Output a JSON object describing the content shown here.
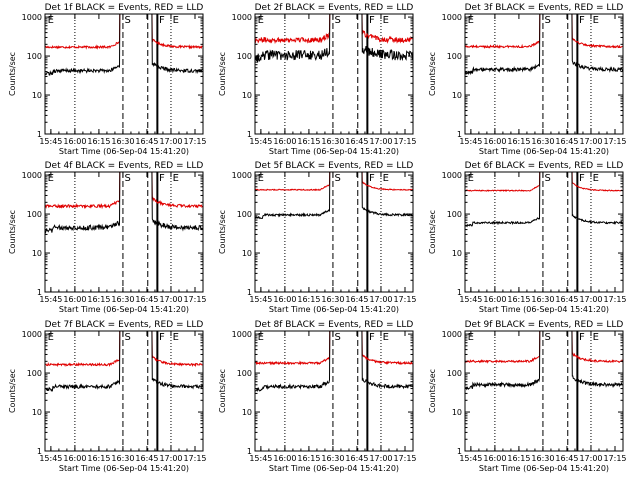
{
  "chart_data": [
    {
      "id": "det1",
      "type": "line",
      "title": "Det 1f BLACK = Events, RED = LLD",
      "xlabel": "Start Time (06-Sep-04 15:41:20)",
      "ylabel": "Counts/sec",
      "evt": 42,
      "lld": 170,
      "evt_noise": 0.1,
      "lld_noise": 0.06
    },
    {
      "id": "det2",
      "type": "line",
      "title": "Det 2f BLACK = Events, RED = LLD",
      "xlabel": "Start Time (06-Sep-04 15:41:20)",
      "ylabel": "Counts/sec",
      "evt": 105,
      "lld": 260,
      "evt_noise": 0.3,
      "lld_noise": 0.15
    },
    {
      "id": "det3",
      "type": "line",
      "title": "Det 3f BLACK = Events, RED = LLD",
      "xlabel": "Start Time (06-Sep-04 15:41:20)",
      "ylabel": "Counts/sec",
      "evt": 45,
      "lld": 175,
      "evt_noise": 0.1,
      "lld_noise": 0.06
    },
    {
      "id": "det4",
      "type": "line",
      "title": "Det 4f BLACK = Events, RED = LLD",
      "xlabel": "Start Time (06-Sep-04 15:41:20)",
      "ylabel": "Counts/sec",
      "evt": 45,
      "lld": 160,
      "evt_noise": 0.14,
      "lld_noise": 0.08
    },
    {
      "id": "det5",
      "type": "line",
      "title": "Det 5f BLACK = Events, RED = LLD",
      "xlabel": "Start Time (06-Sep-04 15:41:20)",
      "ylabel": "Counts/sec",
      "evt": 95,
      "lld": 420,
      "evt_noise": 0.06,
      "lld_noise": 0.03
    },
    {
      "id": "det6",
      "type": "line",
      "title": "Det 6f BLACK = Events, RED = LLD",
      "xlabel": "Start Time (06-Sep-04 15:41:20)",
      "ylabel": "Counts/sec",
      "evt": 60,
      "lld": 400,
      "evt_noise": 0.06,
      "lld_noise": 0.03
    },
    {
      "id": "det7",
      "type": "line",
      "title": "Det 7f BLACK = Events, RED = LLD",
      "xlabel": "Start Time (06-Sep-04 15:41:20)",
      "ylabel": "Counts/sec",
      "evt": 45,
      "lld": 165,
      "evt_noise": 0.1,
      "lld_noise": 0.06
    },
    {
      "id": "det8",
      "type": "line",
      "title": "Det 8f BLACK = Events, RED = LLD",
      "xlabel": "Start Time (06-Sep-04 15:41:20)",
      "ylabel": "Counts/sec",
      "evt": 45,
      "lld": 180,
      "evt_noise": 0.1,
      "lld_noise": 0.06
    },
    {
      "id": "det9",
      "type": "line",
      "title": "Det 9f BLACK = Events, RED = LLD",
      "xlabel": "Start Time (06-Sep-04 15:41:20)",
      "ylabel": "Counts/sec",
      "evt": 50,
      "lld": 200,
      "evt_noise": 0.1,
      "lld_noise": 0.06
    }
  ],
  "shared": {
    "x_ticks": [
      "15:45",
      "16:00",
      "16:15",
      "16:30",
      "16:45",
      "17:00",
      "17:15"
    ],
    "x_tick_minutes": [
      945,
      960,
      975,
      990,
      1005,
      1020,
      1035
    ],
    "xlim_minutes": [
      941.33,
      1040
    ],
    "y_ticks": [
      "1",
      "10",
      "100",
      "1000"
    ],
    "y_tick_values": [
      1,
      10,
      100,
      1000
    ],
    "ylim": [
      1,
      1200
    ],
    "y_scale": "log",
    "dotted_minutes": [
      960,
      1020
    ],
    "dashed_minutes": [
      990,
      1005.5
    ],
    "solid_minutes": [
      1011.5
    ],
    "markers": [
      {
        "minutes": 943,
        "text": "E"
      },
      {
        "minutes": 991,
        "text": "S"
      },
      {
        "minutes": 1012.5,
        "text": "F"
      },
      {
        "minutes": 1021,
        "text": "E"
      }
    ],
    "colors": {
      "events": "#000000",
      "lld": "#e00000"
    }
  }
}
